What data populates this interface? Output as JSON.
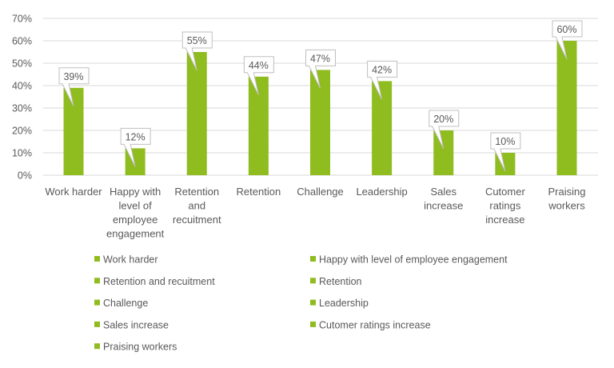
{
  "chart_data": {
    "type": "bar",
    "title": "",
    "xlabel": "",
    "ylabel": "",
    "ylim": [
      0,
      70
    ],
    "yticks": [
      "0%",
      "10%",
      "20%",
      "30%",
      "40%",
      "50%",
      "60%",
      "70%"
    ],
    "grid": true,
    "legend_placement": "bottom",
    "bar_color": "#8fbc1f",
    "categories": [
      "Work harder",
      "Happy with level of employee engagement",
      "Retention and recuitment",
      "Retention",
      "Challenge",
      "Leadership",
      "Sales increase",
      "Cutomer ratings increase",
      "Praising workers"
    ],
    "category_label_lines": [
      [
        "Work harder"
      ],
      [
        "Happy with",
        "level of",
        "employee",
        "engagement"
      ],
      [
        "Retention",
        "and",
        "recuitment"
      ],
      [
        "Retention"
      ],
      [
        "Challenge"
      ],
      [
        "Leadership"
      ],
      [
        "Sales",
        "increase"
      ],
      [
        "Cutomer",
        "ratings",
        "increase"
      ],
      [
        "Praising",
        "workers"
      ]
    ],
    "values": [
      39,
      12,
      55,
      44,
      47,
      42,
      20,
      10,
      60
    ],
    "data_labels": [
      "39%",
      "12%",
      "55%",
      "44%",
      "47%",
      "42%",
      "20%",
      "10%",
      "60%"
    ],
    "legend": [
      "Work harder",
      "Happy with level of employee engagement",
      "Retention and recuitment",
      "Retention",
      "Challenge",
      "Leadership",
      "Sales increase",
      "Cutomer ratings increase",
      "Praising workers"
    ]
  }
}
